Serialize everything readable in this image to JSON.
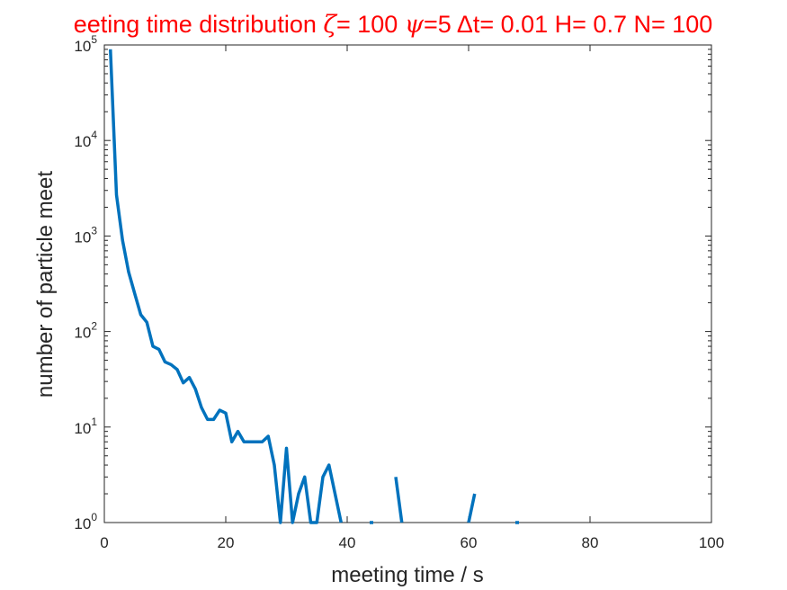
{
  "chart_data": {
    "type": "line",
    "title": {
      "prefix": "eeting time distribution ",
      "zeta_symbol": "ζ",
      "zeta_text": "= 100 ",
      "psi_symbol": "ψ",
      "psi_text": "=5 ",
      "dt_text": "Δt= 0.01 H= 0.7 N= 100"
    },
    "xlabel": "meeting time / s",
    "ylabel": "number of particle meet",
    "xlim": [
      0,
      100
    ],
    "ylim": [
      1,
      100000
    ],
    "yscale": "log",
    "xticks": [
      "0",
      "20",
      "40",
      "60",
      "80",
      "100"
    ],
    "yticks": [
      {
        "base": "10",
        "exp": "0"
      },
      {
        "base": "10",
        "exp": "1"
      },
      {
        "base": "10",
        "exp": "2"
      },
      {
        "base": "10",
        "exp": "3"
      },
      {
        "base": "10",
        "exp": "4"
      },
      {
        "base": "10",
        "exp": "5"
      }
    ],
    "grid": false,
    "line_color": "#0072bd",
    "title_color": "#ff0000",
    "series": [
      {
        "x": [
          1,
          2,
          3,
          4,
          5,
          6,
          7,
          8,
          9,
          10,
          11,
          12,
          13,
          14,
          15,
          16,
          17,
          18,
          19,
          20,
          21,
          22,
          23,
          24,
          25,
          26,
          27,
          28,
          29,
          30,
          31,
          32,
          33,
          34,
          35,
          36,
          37,
          38,
          39,
          40,
          41,
          42,
          43,
          44,
          45,
          46,
          47,
          48,
          49,
          50,
          51,
          52,
          53,
          54,
          55,
          56,
          57,
          58,
          59,
          60,
          61,
          62,
          63,
          64,
          65,
          66,
          67,
          68,
          69,
          70
        ],
        "y": [
          90000,
          2700,
          900,
          420,
          250,
          150,
          125,
          70,
          65,
          48,
          45,
          40,
          29,
          33,
          25,
          16,
          12,
          12,
          15,
          14,
          7,
          9,
          7,
          7,
          7,
          7,
          8,
          4,
          1,
          6,
          1,
          2,
          3,
          1,
          1,
          3,
          4,
          2,
          1,
          0,
          0,
          0,
          0,
          1,
          0,
          0,
          0,
          3,
          1,
          0,
          0,
          0,
          0,
          0,
          0,
          0,
          0,
          0,
          0,
          1,
          2,
          0,
          0,
          0,
          0,
          0,
          0,
          1,
          0,
          0
        ]
      }
    ]
  }
}
